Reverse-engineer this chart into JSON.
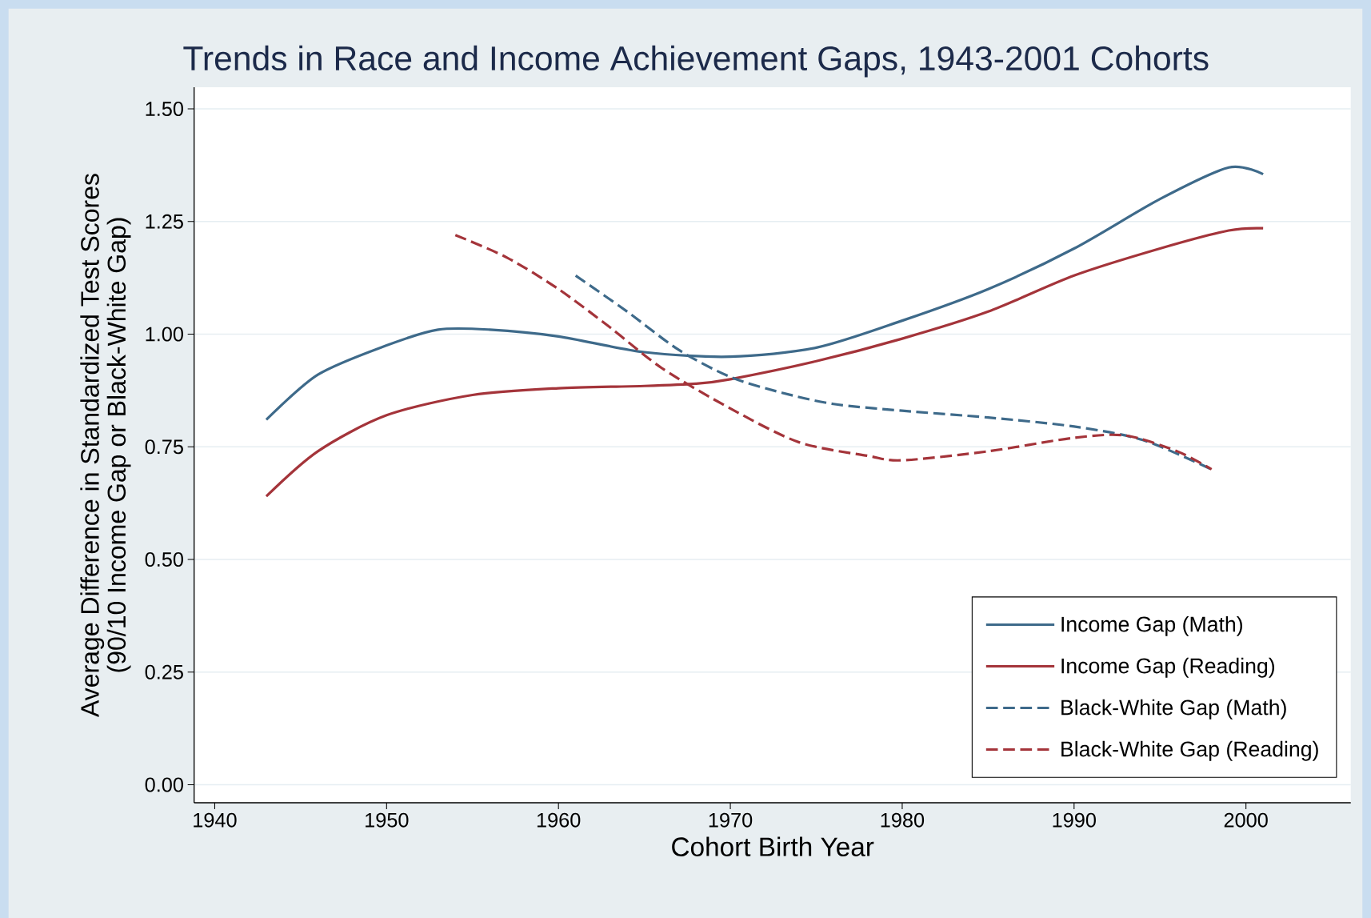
{
  "chart_data": {
    "type": "line",
    "title": "Trends in Race and Income Achievement Gaps, 1943-2001 Cohorts",
    "xlabel": "Cohort Birth Year",
    "ylabel": [
      "Average Difference in Standardized Test Scores",
      "(90/10 Income Gap or Black-White Gap)"
    ],
    "xlim": [
      1938.8,
      2006.1
    ],
    "ylim": [
      -0.04,
      1.548
    ],
    "xticks": [
      1940,
      1950,
      1960,
      1970,
      1980,
      1990,
      2000
    ],
    "yticks": [
      {
        "value": 0,
        "label": "0.00"
      },
      {
        "value": 0.25,
        "label": "0.25"
      },
      {
        "value": 0.5,
        "label": "0.50"
      },
      {
        "value": 0.75,
        "label": "0.75"
      },
      {
        "value": 1,
        "label": "1.00"
      },
      {
        "value": 1.25,
        "label": "1.25"
      },
      {
        "value": 1.5,
        "label": "1.50"
      }
    ],
    "grid": "y",
    "legend": "bottom right",
    "marker": "none",
    "series": [
      {
        "name": "Income Gap (Math)",
        "color": "#3e6a8a",
        "line_style": "solid",
        "x": [
          1943,
          1946,
          1950,
          1953,
          1956,
          1960,
          1965,
          1970,
          1975,
          1980,
          1985,
          1990,
          1995,
          1999,
          2001
        ],
        "values": [
          0.81,
          0.91,
          0.975,
          1.01,
          1.01,
          0.995,
          0.96,
          0.95,
          0.97,
          1.03,
          1.1,
          1.19,
          1.3,
          1.37,
          1.355
        ]
      },
      {
        "name": "Income Gap (Reading)",
        "color": "#a4343a",
        "line_style": "solid",
        "x": [
          1943,
          1946,
          1950,
          1955,
          1960,
          1965,
          1968,
          1970,
          1975,
          1980,
          1985,
          1990,
          1995,
          1999,
          2001
        ],
        "values": [
          0.64,
          0.74,
          0.82,
          0.865,
          0.88,
          0.885,
          0.89,
          0.9,
          0.94,
          0.99,
          1.05,
          1.13,
          1.19,
          1.23,
          1.235
        ]
      },
      {
        "name": "Black-White Gap (Math)",
        "color": "#3e6a8a",
        "line_style": "dashed",
        "x": [
          1961,
          1964,
          1967,
          1970,
          1973,
          1976,
          1980,
          1985,
          1990,
          1994,
          1998
        ],
        "values": [
          1.13,
          1.05,
          0.965,
          0.905,
          0.87,
          0.845,
          0.83,
          0.815,
          0.795,
          0.765,
          0.7
        ]
      },
      {
        "name": "Black-White Gap (Reading)",
        "color": "#a4343a",
        "line_style": "dashed",
        "x": [
          1954,
          1957,
          1960,
          1963,
          1966,
          1970,
          1974,
          1978,
          1980,
          1985,
          1990,
          1993,
          1996,
          1998
        ],
        "values": [
          1.22,
          1.17,
          1.1,
          1.015,
          0.925,
          0.835,
          0.76,
          0.73,
          0.72,
          0.74,
          0.77,
          0.775,
          0.74,
          0.7
        ]
      }
    ]
  }
}
